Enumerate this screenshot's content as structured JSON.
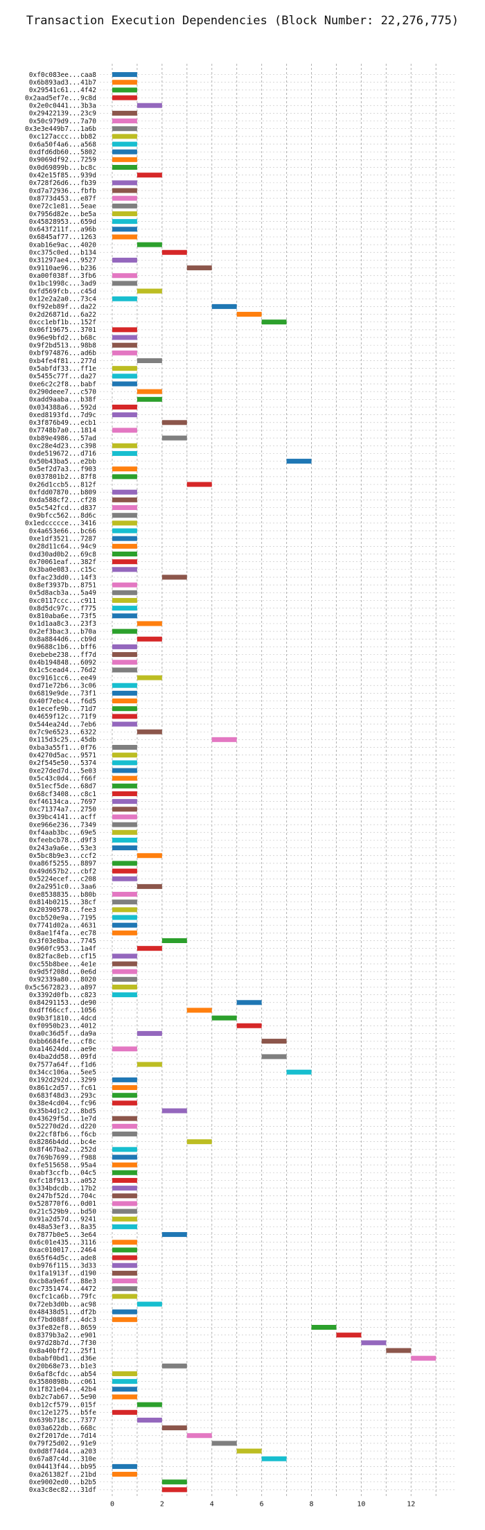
{
  "chart_data": {
    "type": "bar",
    "orientation": "horizontal",
    "title": "Transaction Execution Dependencies (Block Number: 22,276,775)",
    "xlabel": "",
    "ylabel": "",
    "xlim": [
      -0.5,
      13.8
    ],
    "xticks": [
      0,
      2,
      4,
      6,
      8,
      10,
      12
    ],
    "grid": true,
    "legend": "none",
    "palette": [
      "#1f77b4",
      "#ff7f0e",
      "#2ca02c",
      "#d62728",
      "#9467bd",
      "#8c564b",
      "#e377c2",
      "#7f7f7f",
      "#bcbd22",
      "#17becf"
    ],
    "bars": [
      {
        "tx": "0xf0c083ee...caa8",
        "start": 0,
        "end": 1
      },
      {
        "tx": "0x6b893ad3...41b7",
        "start": 0,
        "end": 1
      },
      {
        "tx": "0x29541c61...4f42",
        "start": 0,
        "end": 1
      },
      {
        "tx": "0x2aad5ef7e...9c8d",
        "start": 0,
        "end": 1
      },
      {
        "tx": "0x2e0c0441...3b3a",
        "start": 1,
        "end": 2
      },
      {
        "tx": "0x29422139...23c9",
        "start": 0,
        "end": 1
      },
      {
        "tx": "0x50c979d9...7a70",
        "start": 0,
        "end": 1
      },
      {
        "tx": "0x3e3e449b7...1a6b",
        "start": 0,
        "end": 1
      },
      {
        "tx": "0xc127accc...bb82",
        "start": 0,
        "end": 1
      },
      {
        "tx": "0x6a50f4a6...a568",
        "start": 0,
        "end": 1
      },
      {
        "tx": "0xdfd6db60...5802",
        "start": 0,
        "end": 1
      },
      {
        "tx": "0x9069df92...7259",
        "start": 0,
        "end": 1
      },
      {
        "tx": "0x0d69899b...bc8c",
        "start": 0,
        "end": 1
      },
      {
        "tx": "0x42e15f85...939d",
        "start": 1,
        "end": 2
      },
      {
        "tx": "0x728f26d6...fb39",
        "start": 0,
        "end": 1
      },
      {
        "tx": "0xd7a72936...fbfb",
        "start": 0,
        "end": 1
      },
      {
        "tx": "0x8773d453...e87f",
        "start": 0,
        "end": 1
      },
      {
        "tx": "0xe72c1e81...5eae",
        "start": 0,
        "end": 1
      },
      {
        "tx": "0x7956d82e...be5a",
        "start": 0,
        "end": 1
      },
      {
        "tx": "0x45828953...659d",
        "start": 0,
        "end": 1
      },
      {
        "tx": "0x643f211f...a96b",
        "start": 0,
        "end": 1
      },
      {
        "tx": "0x6845af77...1263",
        "start": 0,
        "end": 1
      },
      {
        "tx": "0xab16e9ac...4020",
        "start": 1,
        "end": 2
      },
      {
        "tx": "0xc375c0ed...b134",
        "start": 2,
        "end": 3
      },
      {
        "tx": "0x31297ae4...9527",
        "start": 0,
        "end": 1
      },
      {
        "tx": "0x9110ae96...b236",
        "start": 3,
        "end": 4
      },
      {
        "tx": "0xa00f038f...3fb6",
        "start": 0,
        "end": 1
      },
      {
        "tx": "0x1bc1998c...3ad9",
        "start": 0,
        "end": 1
      },
      {
        "tx": "0xfd569fcb...c45d",
        "start": 1,
        "end": 2
      },
      {
        "tx": "0x12e2a2a0...73c4",
        "start": 0,
        "end": 1
      },
      {
        "tx": "0xf92eb89f...da22",
        "start": 4,
        "end": 5
      },
      {
        "tx": "0x2d26871d...6a22",
        "start": 5,
        "end": 6
      },
      {
        "tx": "0xcc1ebf1b...152f",
        "start": 6,
        "end": 7
      },
      {
        "tx": "0x06f19675...3701",
        "start": 0,
        "end": 1
      },
      {
        "tx": "0x96e9bfd2...b68c",
        "start": 0,
        "end": 1
      },
      {
        "tx": "0x9f2bd513...98b8",
        "start": 0,
        "end": 1
      },
      {
        "tx": "0xbf974876...ad6b",
        "start": 0,
        "end": 1
      },
      {
        "tx": "0xb4fe4f81...277d",
        "start": 1,
        "end": 2
      },
      {
        "tx": "0x5abfdf33...ff1e",
        "start": 0,
        "end": 1
      },
      {
        "tx": "0x5455c77f...da27",
        "start": 0,
        "end": 1
      },
      {
        "tx": "0xe6c2c2f8...babf",
        "start": 0,
        "end": 1
      },
      {
        "tx": "0x290deee7...c570",
        "start": 1,
        "end": 2
      },
      {
        "tx": "0xadd9aaba...b38f",
        "start": 1,
        "end": 2
      },
      {
        "tx": "0x034388a6...592d",
        "start": 0,
        "end": 1
      },
      {
        "tx": "0xed8193fd...7d9c",
        "start": 0,
        "end": 1
      },
      {
        "tx": "0x3f876b49...ecb1",
        "start": 2,
        "end": 3
      },
      {
        "tx": "0x7748b7a0...1814",
        "start": 0,
        "end": 1
      },
      {
        "tx": "0xb89e4986...57ad",
        "start": 2,
        "end": 3
      },
      {
        "tx": "0xc28e4d23...c398",
        "start": 0,
        "end": 1
      },
      {
        "tx": "0xde519672...d716",
        "start": 0,
        "end": 1
      },
      {
        "tx": "0x50b43ba5...e2bb",
        "start": 7,
        "end": 8
      },
      {
        "tx": "0x5ef2d7a3...f903",
        "start": 0,
        "end": 1
      },
      {
        "tx": "0x037801b2...87f8",
        "start": 0,
        "end": 1
      },
      {
        "tx": "0x26d1ccb5...812f",
        "start": 3,
        "end": 4
      },
      {
        "tx": "0xfdd07870...b809",
        "start": 0,
        "end": 1
      },
      {
        "tx": "0xda588cf2...cf28",
        "start": 0,
        "end": 1
      },
      {
        "tx": "0x5c542fcd...d837",
        "start": 0,
        "end": 1
      },
      {
        "tx": "0x9bfcc562...8d6c",
        "start": 0,
        "end": 1
      },
      {
        "tx": "0x1edccccce...3416",
        "start": 0,
        "end": 1
      },
      {
        "tx": "0x4a653e66...bc66",
        "start": 0,
        "end": 1
      },
      {
        "tx": "0xe1df3521...7287",
        "start": 0,
        "end": 1
      },
      {
        "tx": "0x28d11c64...94c9",
        "start": 0,
        "end": 1
      },
      {
        "tx": "0xd30ad0b2...69c8",
        "start": 0,
        "end": 1
      },
      {
        "tx": "0x70061eaf...382f",
        "start": 0,
        "end": 1
      },
      {
        "tx": "0x3ba0e083...c15c",
        "start": 0,
        "end": 1
      },
      {
        "tx": "0xfac23dd0...14f3",
        "start": 2,
        "end": 3
      },
      {
        "tx": "0x8ef3937b...8751",
        "start": 0,
        "end": 1
      },
      {
        "tx": "0x5d8acb3a...5a49",
        "start": 0,
        "end": 1
      },
      {
        "tx": "0xc0117ccc...c911",
        "start": 0,
        "end": 1
      },
      {
        "tx": "0x8d5dc97c...f775",
        "start": 0,
        "end": 1
      },
      {
        "tx": "0x810aba6e...73f5",
        "start": 0,
        "end": 1
      },
      {
        "tx": "0x1d1aa8c3...23f3",
        "start": 1,
        "end": 2
      },
      {
        "tx": "0x2ef3bac3...b70a",
        "start": 0,
        "end": 1
      },
      {
        "tx": "0x8a8844d6...cb9d",
        "start": 1,
        "end": 2
      },
      {
        "tx": "0x9688c1b6...bff6",
        "start": 0,
        "end": 1
      },
      {
        "tx": "0xebebe238...ff7d",
        "start": 0,
        "end": 1
      },
      {
        "tx": "0x4b194848...6092",
        "start": 0,
        "end": 1
      },
      {
        "tx": "0x1c5cead4...76d2",
        "start": 0,
        "end": 1
      },
      {
        "tx": "0xc9161cc6...ee49",
        "start": 1,
        "end": 2
      },
      {
        "tx": "0xd71e72b6...3c06",
        "start": 0,
        "end": 1
      },
      {
        "tx": "0x6819e9de...73f1",
        "start": 0,
        "end": 1
      },
      {
        "tx": "0x40f7ebc4...f6d5",
        "start": 0,
        "end": 1
      },
      {
        "tx": "0x1ecefe9b...71d7",
        "start": 0,
        "end": 1
      },
      {
        "tx": "0x4659f12c...71f9",
        "start": 0,
        "end": 1
      },
      {
        "tx": "0x544ea24d...7eb6",
        "start": 0,
        "end": 1
      },
      {
        "tx": "0x7c9e6523...6322",
        "start": 1,
        "end": 2
      },
      {
        "tx": "0x115d3c25...45db",
        "start": 4,
        "end": 5
      },
      {
        "tx": "0xba3a55f1...0f76",
        "start": 0,
        "end": 1
      },
      {
        "tx": "0x4270d5ac...9571",
        "start": 0,
        "end": 1
      },
      {
        "tx": "0x2f545e50...5374",
        "start": 0,
        "end": 1
      },
      {
        "tx": "0xe27ded7d...5e03",
        "start": 0,
        "end": 1
      },
      {
        "tx": "0x5c43c0d4...f66f",
        "start": 0,
        "end": 1
      },
      {
        "tx": "0x51ecf5de...68d7",
        "start": 0,
        "end": 1
      },
      {
        "tx": "0x68cf3408...c8c1",
        "start": 0,
        "end": 1
      },
      {
        "tx": "0xf46134ca...7697",
        "start": 0,
        "end": 1
      },
      {
        "tx": "0xc71374a7...2750",
        "start": 0,
        "end": 1
      },
      {
        "tx": "0x39bc4141...acff",
        "start": 0,
        "end": 1
      },
      {
        "tx": "0xe966e236...7349",
        "start": 0,
        "end": 1
      },
      {
        "tx": "0xf4aab3bc...69e5",
        "start": 0,
        "end": 1
      },
      {
        "tx": "0xfeebcb78...d9f3",
        "start": 0,
        "end": 1
      },
      {
        "tx": "0x243a9a6e...53e3",
        "start": 0,
        "end": 1
      },
      {
        "tx": "0x5bc8b9e3...ccf2",
        "start": 1,
        "end": 2
      },
      {
        "tx": "0xa86f5255...8897",
        "start": 0,
        "end": 1
      },
      {
        "tx": "0x49d657b2...cbf2",
        "start": 0,
        "end": 1
      },
      {
        "tx": "0x5224ecef...c208",
        "start": 0,
        "end": 1
      },
      {
        "tx": "0x2a2951c0...3aa6",
        "start": 1,
        "end": 2
      },
      {
        "tx": "0xe8538835...b80b",
        "start": 0,
        "end": 1
      },
      {
        "tx": "0x814b0215...38cf",
        "start": 0,
        "end": 1
      },
      {
        "tx": "0x20390578...fee3",
        "start": 0,
        "end": 1
      },
      {
        "tx": "0xcb520e9a...7195",
        "start": 0,
        "end": 1
      },
      {
        "tx": "0x7741d02a...4631",
        "start": 0,
        "end": 1
      },
      {
        "tx": "0x8ae1f4fa...ec78",
        "start": 0,
        "end": 1
      },
      {
        "tx": "0x3f03e8ba...7745",
        "start": 2,
        "end": 3
      },
      {
        "tx": "0x960fc953...1a4f",
        "start": 1,
        "end": 2
      },
      {
        "tx": "0x82fac8eb...cf15",
        "start": 0,
        "end": 1
      },
      {
        "tx": "0xc55b8bee...4e1e",
        "start": 0,
        "end": 1
      },
      {
        "tx": "0x9d5f208d...0e6d",
        "start": 0,
        "end": 1
      },
      {
        "tx": "0x92339a80...8020",
        "start": 0,
        "end": 1
      },
      {
        "tx": "0x5c5672823...a897",
        "start": 0,
        "end": 1
      },
      {
        "tx": "0x3392d0fb...c823",
        "start": 0,
        "end": 1
      },
      {
        "tx": "0x84291153...de90",
        "start": 5,
        "end": 6
      },
      {
        "tx": "0xdff66ccf...1056",
        "start": 3,
        "end": 4
      },
      {
        "tx": "0x9b3f1810...4dcd",
        "start": 4,
        "end": 5
      },
      {
        "tx": "0xf0950b23...4012",
        "start": 5,
        "end": 6
      },
      {
        "tx": "0xa0c36d5f...da9a",
        "start": 1,
        "end": 2
      },
      {
        "tx": "0xbb6684fe...cf8c",
        "start": 6,
        "end": 7
      },
      {
        "tx": "0xa14624dd...ae9e",
        "start": 0,
        "end": 1
      },
      {
        "tx": "0x4ba2dd58...09fd",
        "start": 6,
        "end": 7
      },
      {
        "tx": "0x7577a64f...f1d6",
        "start": 1,
        "end": 2
      },
      {
        "tx": "0x34cc106a...5ee5",
        "start": 7,
        "end": 8
      },
      {
        "tx": "0x192d292d...3299",
        "start": 0,
        "end": 1
      },
      {
        "tx": "0x861c2d57...fc61",
        "start": 0,
        "end": 1
      },
      {
        "tx": "0x683f48d3...293c",
        "start": 0,
        "end": 1
      },
      {
        "tx": "0x38e4cd04...fc96",
        "start": 0,
        "end": 1
      },
      {
        "tx": "0x35b4d1c2...8bd5",
        "start": 2,
        "end": 3
      },
      {
        "tx": "0x43629f5d...1e7d",
        "start": 0,
        "end": 1
      },
      {
        "tx": "0x52270d2d...d220",
        "start": 0,
        "end": 1
      },
      {
        "tx": "0x22cf8fb6...f6cb",
        "start": 0,
        "end": 1
      },
      {
        "tx": "0x8286b4dd...bc4e",
        "start": 3,
        "end": 4
      },
      {
        "tx": "0x8f467ba2...252d",
        "start": 0,
        "end": 1
      },
      {
        "tx": "0x769b7699...f988",
        "start": 0,
        "end": 1
      },
      {
        "tx": "0xfe515658...95a4",
        "start": 0,
        "end": 1
      },
      {
        "tx": "0xabf3ccfb...04c5",
        "start": 0,
        "end": 1
      },
      {
        "tx": "0xfc18f913...a052",
        "start": 0,
        "end": 1
      },
      {
        "tx": "0x334bdcdb...17b2",
        "start": 0,
        "end": 1
      },
      {
        "tx": "0x247bf52d...704c",
        "start": 0,
        "end": 1
      },
      {
        "tx": "0x528770f6...0d01",
        "start": 0,
        "end": 1
      },
      {
        "tx": "0x21c529b9...bd50",
        "start": 0,
        "end": 1
      },
      {
        "tx": "0x91a2d57d...9241",
        "start": 0,
        "end": 1
      },
      {
        "tx": "0x48a53ef3...8a35",
        "start": 0,
        "end": 1
      },
      {
        "tx": "0x7877b0e5...3e64",
        "start": 2,
        "end": 3
      },
      {
        "tx": "0x6c01e435...3116",
        "start": 0,
        "end": 1
      },
      {
        "tx": "0xac010017...2464",
        "start": 0,
        "end": 1
      },
      {
        "tx": "0x65f64d5c...ade8",
        "start": 0,
        "end": 1
      },
      {
        "tx": "0xb976f115...3d33",
        "start": 0,
        "end": 1
      },
      {
        "tx": "0x1fa1913f...d190",
        "start": 0,
        "end": 1
      },
      {
        "tx": "0xcb8a9e6f...88e3",
        "start": 0,
        "end": 1
      },
      {
        "tx": "0xc7351474...4472",
        "start": 0,
        "end": 1
      },
      {
        "tx": "0xcfc1ca6b...79fc",
        "start": 0,
        "end": 1
      },
      {
        "tx": "0x72eb3d0b...ac98",
        "start": 1,
        "end": 2
      },
      {
        "tx": "0x48438d51...df2b",
        "start": 0,
        "end": 1
      },
      {
        "tx": "0xf7bd088f...4dc3",
        "start": 0,
        "end": 1
      },
      {
        "tx": "0x3fe82ef8...8659",
        "start": 8,
        "end": 9
      },
      {
        "tx": "0x8379b3a2...e901",
        "start": 9,
        "end": 10
      },
      {
        "tx": "0x97d28b7d...7f30",
        "start": 10,
        "end": 11
      },
      {
        "tx": "0x8a40bff2...25f1",
        "start": 11,
        "end": 12
      },
      {
        "tx": "0xbabf0bd1...d36e",
        "start": 12,
        "end": 13
      },
      {
        "tx": "0x20b68e73...b1e3",
        "start": 2,
        "end": 3
      },
      {
        "tx": "0x6af8cfdc...ab54",
        "start": 0,
        "end": 1
      },
      {
        "tx": "0x3580898b...c061",
        "start": 0,
        "end": 1
      },
      {
        "tx": "0x1f821e04...42b4",
        "start": 0,
        "end": 1
      },
      {
        "tx": "0xb2c7ab67...5e90",
        "start": 0,
        "end": 1
      },
      {
        "tx": "0xb12cf579...015f",
        "start": 1,
        "end": 2
      },
      {
        "tx": "0xc12e1275...b5fe",
        "start": 0,
        "end": 1
      },
      {
        "tx": "0x639b718c...7377",
        "start": 1,
        "end": 2
      },
      {
        "tx": "0x03a622db...668c",
        "start": 2,
        "end": 3
      },
      {
        "tx": "0x2f2017de...7d14",
        "start": 3,
        "end": 4
      },
      {
        "tx": "0x79f25d02...91e9",
        "start": 4,
        "end": 5
      },
      {
        "tx": "0x0d8f74d4...a203",
        "start": 5,
        "end": 6
      },
      {
        "tx": "0x67a87c4d...310e",
        "start": 6,
        "end": 7
      },
      {
        "tx": "0x04413f44...bb95",
        "start": 0,
        "end": 1
      },
      {
        "tx": "0xa261382f...21bd",
        "start": 0,
        "end": 1
      },
      {
        "tx": "0xe9002ed0...b2b5",
        "start": 2,
        "end": 3
      },
      {
        "tx": "0xa3c8ec82...31df",
        "start": 2,
        "end": 3
      }
    ]
  }
}
